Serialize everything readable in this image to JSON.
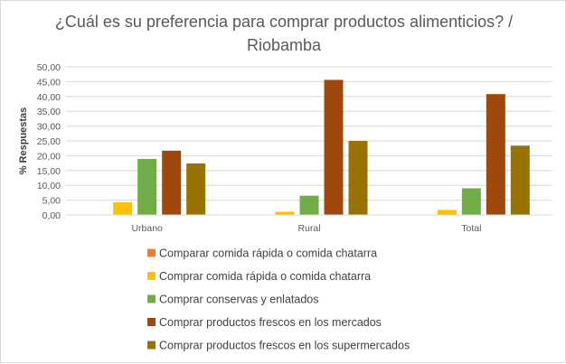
{
  "chart_data": {
    "type": "bar",
    "title": "¿Cuál es su preferencia para comprar productos alimenticios? / Riobamba",
    "title_lines": [
      "¿Cuál es su preferencia para comprar productos alimenticios? /",
      "Riobamba"
    ],
    "xlabel": "",
    "ylabel": "% Respuestas",
    "ylim": [
      0,
      50
    ],
    "yticks": [
      "0,00",
      "5,00",
      "10,00",
      "15,00",
      "20,00",
      "25,00",
      "30,00",
      "35,00",
      "40,00",
      "45,00",
      "50,00"
    ],
    "categories": [
      "Urbano",
      "Rural",
      "Total"
    ],
    "grid": true,
    "legend_position": "bottom",
    "series": [
      {
        "name": "Comparar comida rápida o comida chatarra",
        "color": "#ed7d31",
        "values": [
          0,
          0,
          0
        ]
      },
      {
        "name": "Comprar comida rápida o comida chatarra",
        "color": "#ffc000",
        "values": [
          4.3,
          1.1,
          1.7
        ]
      },
      {
        "name": "Comprar conservas y enlatados",
        "color": "#70ad47",
        "values": [
          18.9,
          6.5,
          9.0
        ]
      },
      {
        "name": "Comprar productos frescos en los mercados",
        "color": "#9e480e",
        "values": [
          21.7,
          45.6,
          40.8
        ]
      },
      {
        "name": "Comprar productos frescos en los supermercados",
        "color": "#997300",
        "values": [
          17.4,
          25.0,
          23.4
        ]
      }
    ]
  }
}
